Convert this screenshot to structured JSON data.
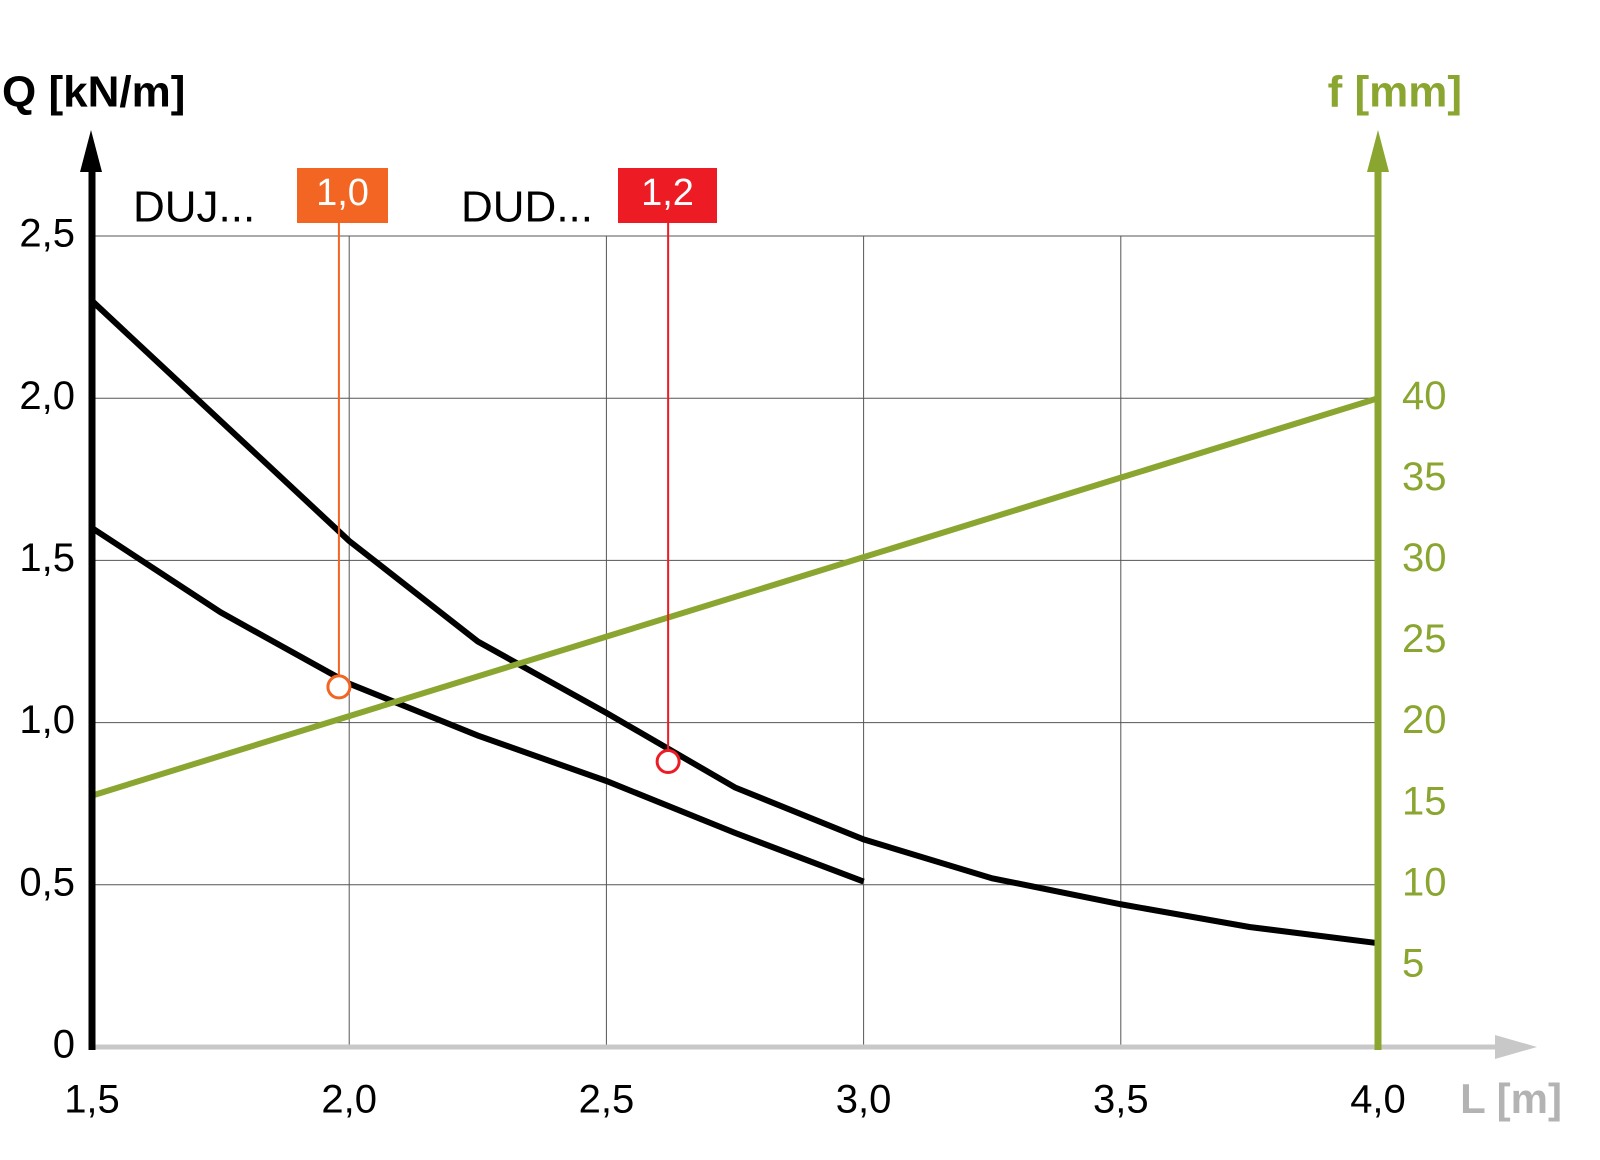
{
  "chart_data": {
    "type": "line",
    "x_label": "L [m]",
    "y_label": "Q [kN/m]",
    "y2_label": "f [mm]",
    "xlim": [
      1.5,
      4.0
    ],
    "ylim": [
      0,
      2.5
    ],
    "y2lim": [
      0,
      50
    ],
    "xticks": [
      {
        "value": 1.5,
        "label": "1,5"
      },
      {
        "value": 2.0,
        "label": "2,0"
      },
      {
        "value": 2.5,
        "label": "2,5"
      },
      {
        "value": 3.0,
        "label": "3,0"
      },
      {
        "value": 3.5,
        "label": "3,5"
      },
      {
        "value": 4.0,
        "label": "4,0"
      }
    ],
    "yticks": [
      0,
      {
        "value": 0.5,
        "label": "0,5"
      },
      {
        "value": 1.0,
        "label": "1,0"
      },
      {
        "value": 1.5,
        "label": "1,5"
      },
      {
        "value": 2.0,
        "label": "2,0"
      },
      {
        "value": 2.5,
        "label": "2,5"
      }
    ],
    "y2ticks": [
      5,
      10,
      15,
      20,
      25,
      30,
      35,
      40
    ],
    "grid": true,
    "series": [
      {
        "name": "DUJ...",
        "color": "#000000",
        "badge": "1,0",
        "badge_color": "#f26522",
        "x": [
          1.5,
          1.75,
          2.0,
          2.25,
          2.5,
          2.75,
          3.0
        ],
        "values": [
          1.6,
          1.34,
          1.12,
          0.96,
          0.82,
          0.66,
          0.51
        ],
        "marker": {
          "x": 1.98,
          "y": 1.11
        }
      },
      {
        "name": "DUD...",
        "color": "#000000",
        "badge": "1,2",
        "badge_color": "#ed1c24",
        "x": [
          1.5,
          1.75,
          2.0,
          2.25,
          2.5,
          2.75,
          3.0,
          3.25,
          3.5,
          3.75,
          4.0
        ],
        "values": [
          2.3,
          1.93,
          1.56,
          1.25,
          1.03,
          0.8,
          0.64,
          0.52,
          0.44,
          0.37,
          0.32
        ],
        "marker": {
          "x": 2.62,
          "y": 0.88
        }
      },
      {
        "color": "#8aa630",
        "axis": "y2",
        "x": [
          1.5,
          2.0,
          2.5,
          3.0,
          3.5,
          4.0
        ],
        "values": [
          15.5,
          20.4,
          25.3,
          30.2,
          35.1,
          40
        ]
      }
    ]
  }
}
